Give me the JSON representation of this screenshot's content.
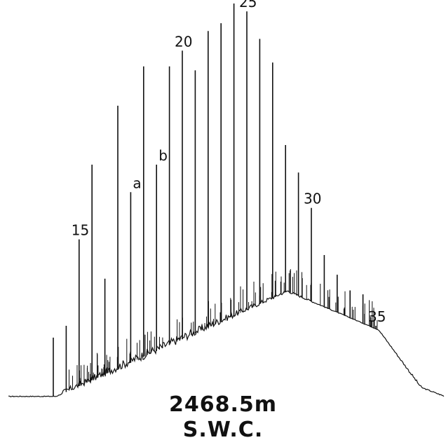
{
  "chart_data": {
    "type": "line",
    "title": "",
    "xlabel": "",
    "ylabel": "",
    "grid": false,
    "colors": {
      "trace": "#111111",
      "background": "#ffffff"
    },
    "peaks": [
      {
        "label": "",
        "height": 0.15
      },
      {
        "label": "",
        "height": 0.18
      },
      {
        "label": "15",
        "height": 0.4
      },
      {
        "label": "",
        "height": 0.59
      },
      {
        "label": "",
        "height": 0.3
      },
      {
        "label": "",
        "height": 0.74
      },
      {
        "label": "a",
        "height": 0.52
      },
      {
        "label": "",
        "height": 0.84
      },
      {
        "label": "b",
        "height": 0.59
      },
      {
        "label": "",
        "height": 0.84
      },
      {
        "label": "20",
        "height": 0.88
      },
      {
        "label": "",
        "height": 0.83
      },
      {
        "label": "",
        "height": 0.93
      },
      {
        "label": "",
        "height": 0.95
      },
      {
        "label": "",
        "height": 1.0
      },
      {
        "label": "25",
        "height": 0.98
      },
      {
        "label": "",
        "height": 0.91
      },
      {
        "label": "",
        "height": 0.85
      },
      {
        "label": "",
        "height": 0.64
      },
      {
        "label": "",
        "height": 0.57
      },
      {
        "label": "30",
        "height": 0.48
      },
      {
        "label": "",
        "height": 0.36
      },
      {
        "label": "",
        "height": 0.31
      },
      {
        "label": "",
        "height": 0.27
      },
      {
        "label": "",
        "height": 0.26
      },
      {
        "label": "35",
        "height": 0.18
      }
    ]
  },
  "caption": {
    "depth": "2468.5m",
    "sample_type": "S.W.C."
  }
}
